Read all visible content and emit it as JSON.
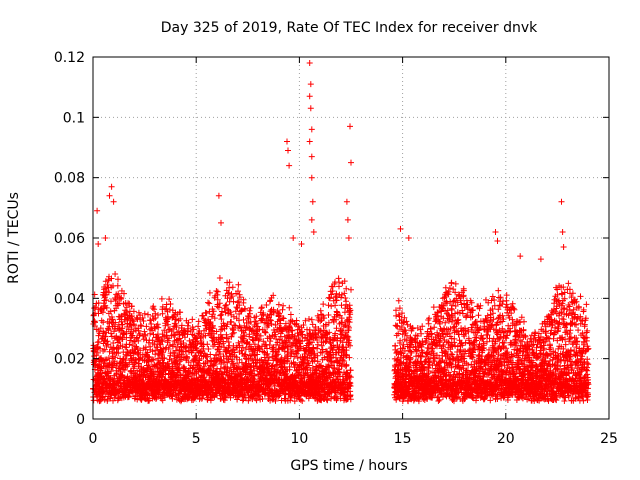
{
  "chart_data": {
    "type": "scatter",
    "title": "Day 325 of 2019, Rate Of TEC Index for receiver dnvk",
    "xlabel": "GPS time / hours",
    "ylabel": "ROTI / TECUs",
    "xlim": [
      0,
      25
    ],
    "ylim": [
      0,
      0.12
    ],
    "xticks": [
      0,
      5,
      10,
      15,
      20,
      25
    ],
    "xtick_labels": [
      "0",
      "5",
      "10",
      "15",
      "20",
      "25"
    ],
    "yticks": [
      0,
      0.02,
      0.04,
      0.06,
      0.08,
      0.1,
      0.12
    ],
    "ytick_labels": [
      "0",
      "0.02",
      "0.04",
      "0.06",
      "0.08",
      "0.1",
      "0.12"
    ],
    "grid": true,
    "marker": "+",
    "series": [
      {
        "name": "ROTI",
        "color": "#ff0000",
        "segments": [
          {
            "x_start": 0.0,
            "x_end": 12.5,
            "baseline": 0.013,
            "spread": 0.02
          },
          {
            "x_start": 14.6,
            "x_end": 24.0,
            "baseline": 0.013,
            "spread": 0.02
          }
        ],
        "outliers": [
          {
            "x": 0.2,
            "y": 0.069
          },
          {
            "x": 0.25,
            "y": 0.058
          },
          {
            "x": 0.6,
            "y": 0.06
          },
          {
            "x": 0.8,
            "y": 0.074
          },
          {
            "x": 0.9,
            "y": 0.077
          },
          {
            "x": 1.0,
            "y": 0.072
          },
          {
            "x": 6.1,
            "y": 0.074
          },
          {
            "x": 6.2,
            "y": 0.065
          },
          {
            "x": 9.4,
            "y": 0.092
          },
          {
            "x": 9.45,
            "y": 0.089
          },
          {
            "x": 9.5,
            "y": 0.084
          },
          {
            "x": 9.7,
            "y": 0.06
          },
          {
            "x": 10.1,
            "y": 0.058
          },
          {
            "x": 10.5,
            "y": 0.118
          },
          {
            "x": 10.55,
            "y": 0.111
          },
          {
            "x": 10.5,
            "y": 0.107
          },
          {
            "x": 10.55,
            "y": 0.103
          },
          {
            "x": 10.6,
            "y": 0.096
          },
          {
            "x": 10.5,
            "y": 0.092
          },
          {
            "x": 10.6,
            "y": 0.087
          },
          {
            "x": 10.6,
            "y": 0.08
          },
          {
            "x": 10.65,
            "y": 0.072
          },
          {
            "x": 10.6,
            "y": 0.066
          },
          {
            "x": 10.7,
            "y": 0.062
          },
          {
            "x": 12.3,
            "y": 0.072
          },
          {
            "x": 12.35,
            "y": 0.066
          },
          {
            "x": 12.4,
            "y": 0.06
          },
          {
            "x": 12.45,
            "y": 0.097
          },
          {
            "x": 12.5,
            "y": 0.085
          },
          {
            "x": 14.9,
            "y": 0.063
          },
          {
            "x": 15.3,
            "y": 0.06
          },
          {
            "x": 19.5,
            "y": 0.062
          },
          {
            "x": 19.6,
            "y": 0.059
          },
          {
            "x": 20.7,
            "y": 0.054
          },
          {
            "x": 21.7,
            "y": 0.053
          },
          {
            "x": 22.7,
            "y": 0.072
          },
          {
            "x": 22.75,
            "y": 0.062
          },
          {
            "x": 22.8,
            "y": 0.057
          }
        ]
      }
    ]
  }
}
